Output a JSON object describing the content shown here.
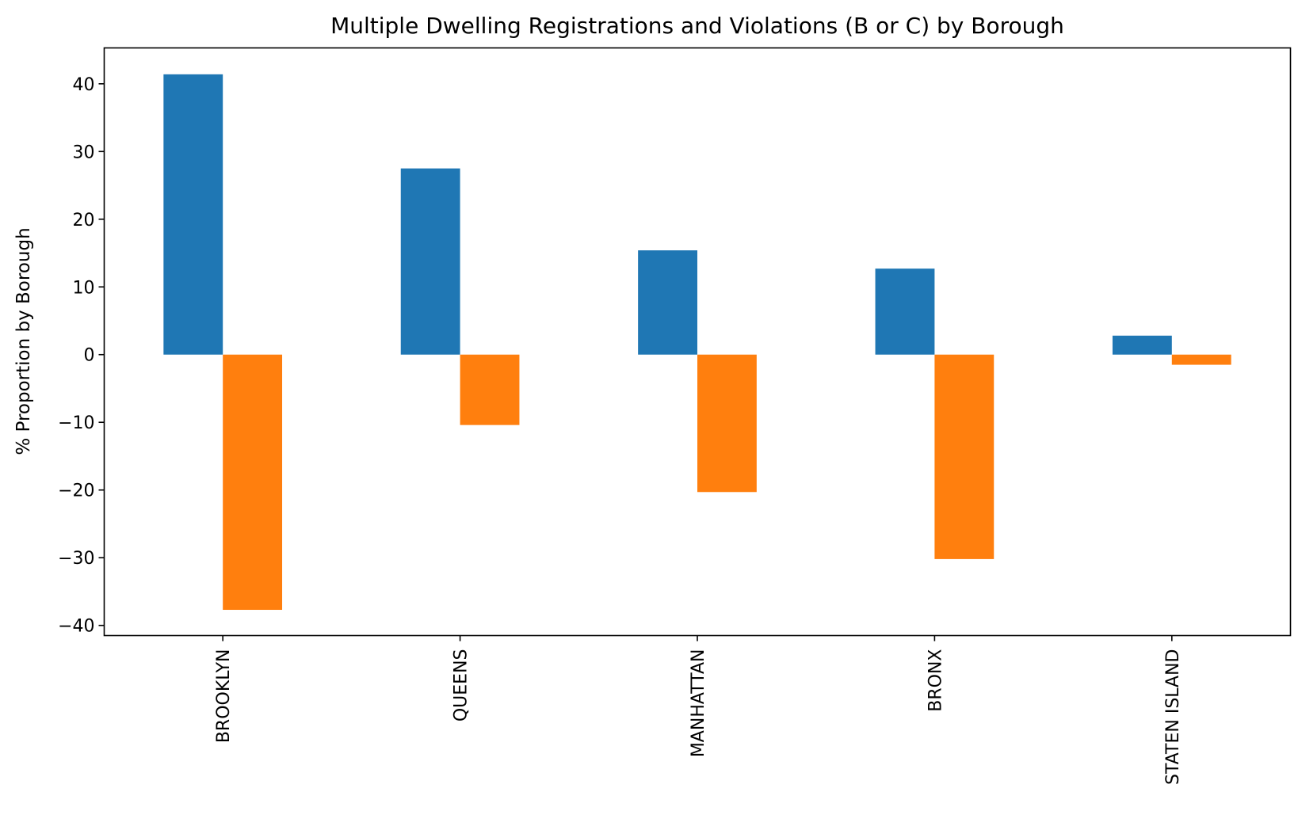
{
  "chart_data": {
    "type": "bar",
    "title": "Multiple Dwelling Registrations and Violations (B or C) by Borough",
    "xlabel": "",
    "ylabel": "% Proportion by Borough",
    "categories": [
      "BROOKLYN",
      "QUEENS",
      "MANHATTAN",
      "BRONX",
      "STATEN ISLAND"
    ],
    "series": [
      {
        "values": [
          41.4,
          27.5,
          15.4,
          12.7,
          2.8
        ],
        "color": "#1f77b4"
      },
      {
        "values": [
          -37.7,
          -10.4,
          -20.3,
          -30.2,
          -1.5
        ],
        "color": "#ff7f0e"
      }
    ],
    "ylim": [
      -41.5,
      45.3
    ],
    "yticks": [
      40,
      30,
      20,
      10,
      0,
      -10,
      -20,
      -30,
      -40
    ],
    "ytick_labels": [
      "40",
      "30",
      "20",
      "10",
      "0",
      "−10",
      "−20",
      "−30",
      "−40"
    ],
    "grid": false,
    "legend": false
  }
}
